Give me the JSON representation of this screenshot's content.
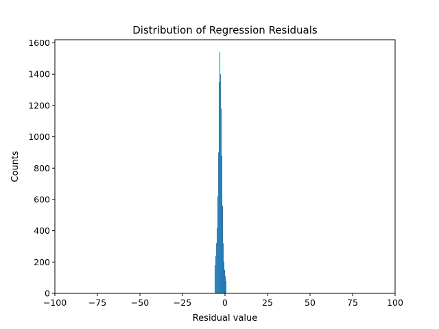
{
  "chart_data": {
    "type": "bar",
    "title": "Distribution of Regression Residuals",
    "xlabel": "Residual value",
    "ylabel": "Counts",
    "xlim": [
      -100,
      100
    ],
    "ylim": [
      0,
      1620
    ],
    "xticks": [
      -100,
      -75,
      -50,
      -25,
      0,
      25,
      50,
      75,
      100
    ],
    "xtick_labels": [
      "−100",
      "−75",
      "−50",
      "−25",
      "0",
      "25",
      "50",
      "75",
      "100"
    ],
    "yticks": [
      0,
      200,
      400,
      600,
      800,
      1000,
      1200,
      1400,
      1600
    ],
    "ytick_labels": [
      "0",
      "200",
      "400",
      "600",
      "800",
      "1000",
      "1200",
      "1400",
      "1600"
    ],
    "bar_color": "#1f77b4",
    "grid": false,
    "series": [
      {
        "bin_width": 0.4,
        "x": [
          -6.0,
          -5.6,
          -5.2,
          -4.8,
          -4.4,
          -4.0,
          -3.6,
          -3.2,
          -2.8,
          -2.4,
          -2.0,
          -1.6,
          -1.2,
          -0.8,
          -0.4,
          0.0,
          0.4
        ],
        "values": [
          180,
          240,
          320,
          420,
          620,
          900,
          1350,
          1540,
          1400,
          1180,
          880,
          560,
          320,
          200,
          150,
          110,
          80
        ]
      }
    ]
  }
}
